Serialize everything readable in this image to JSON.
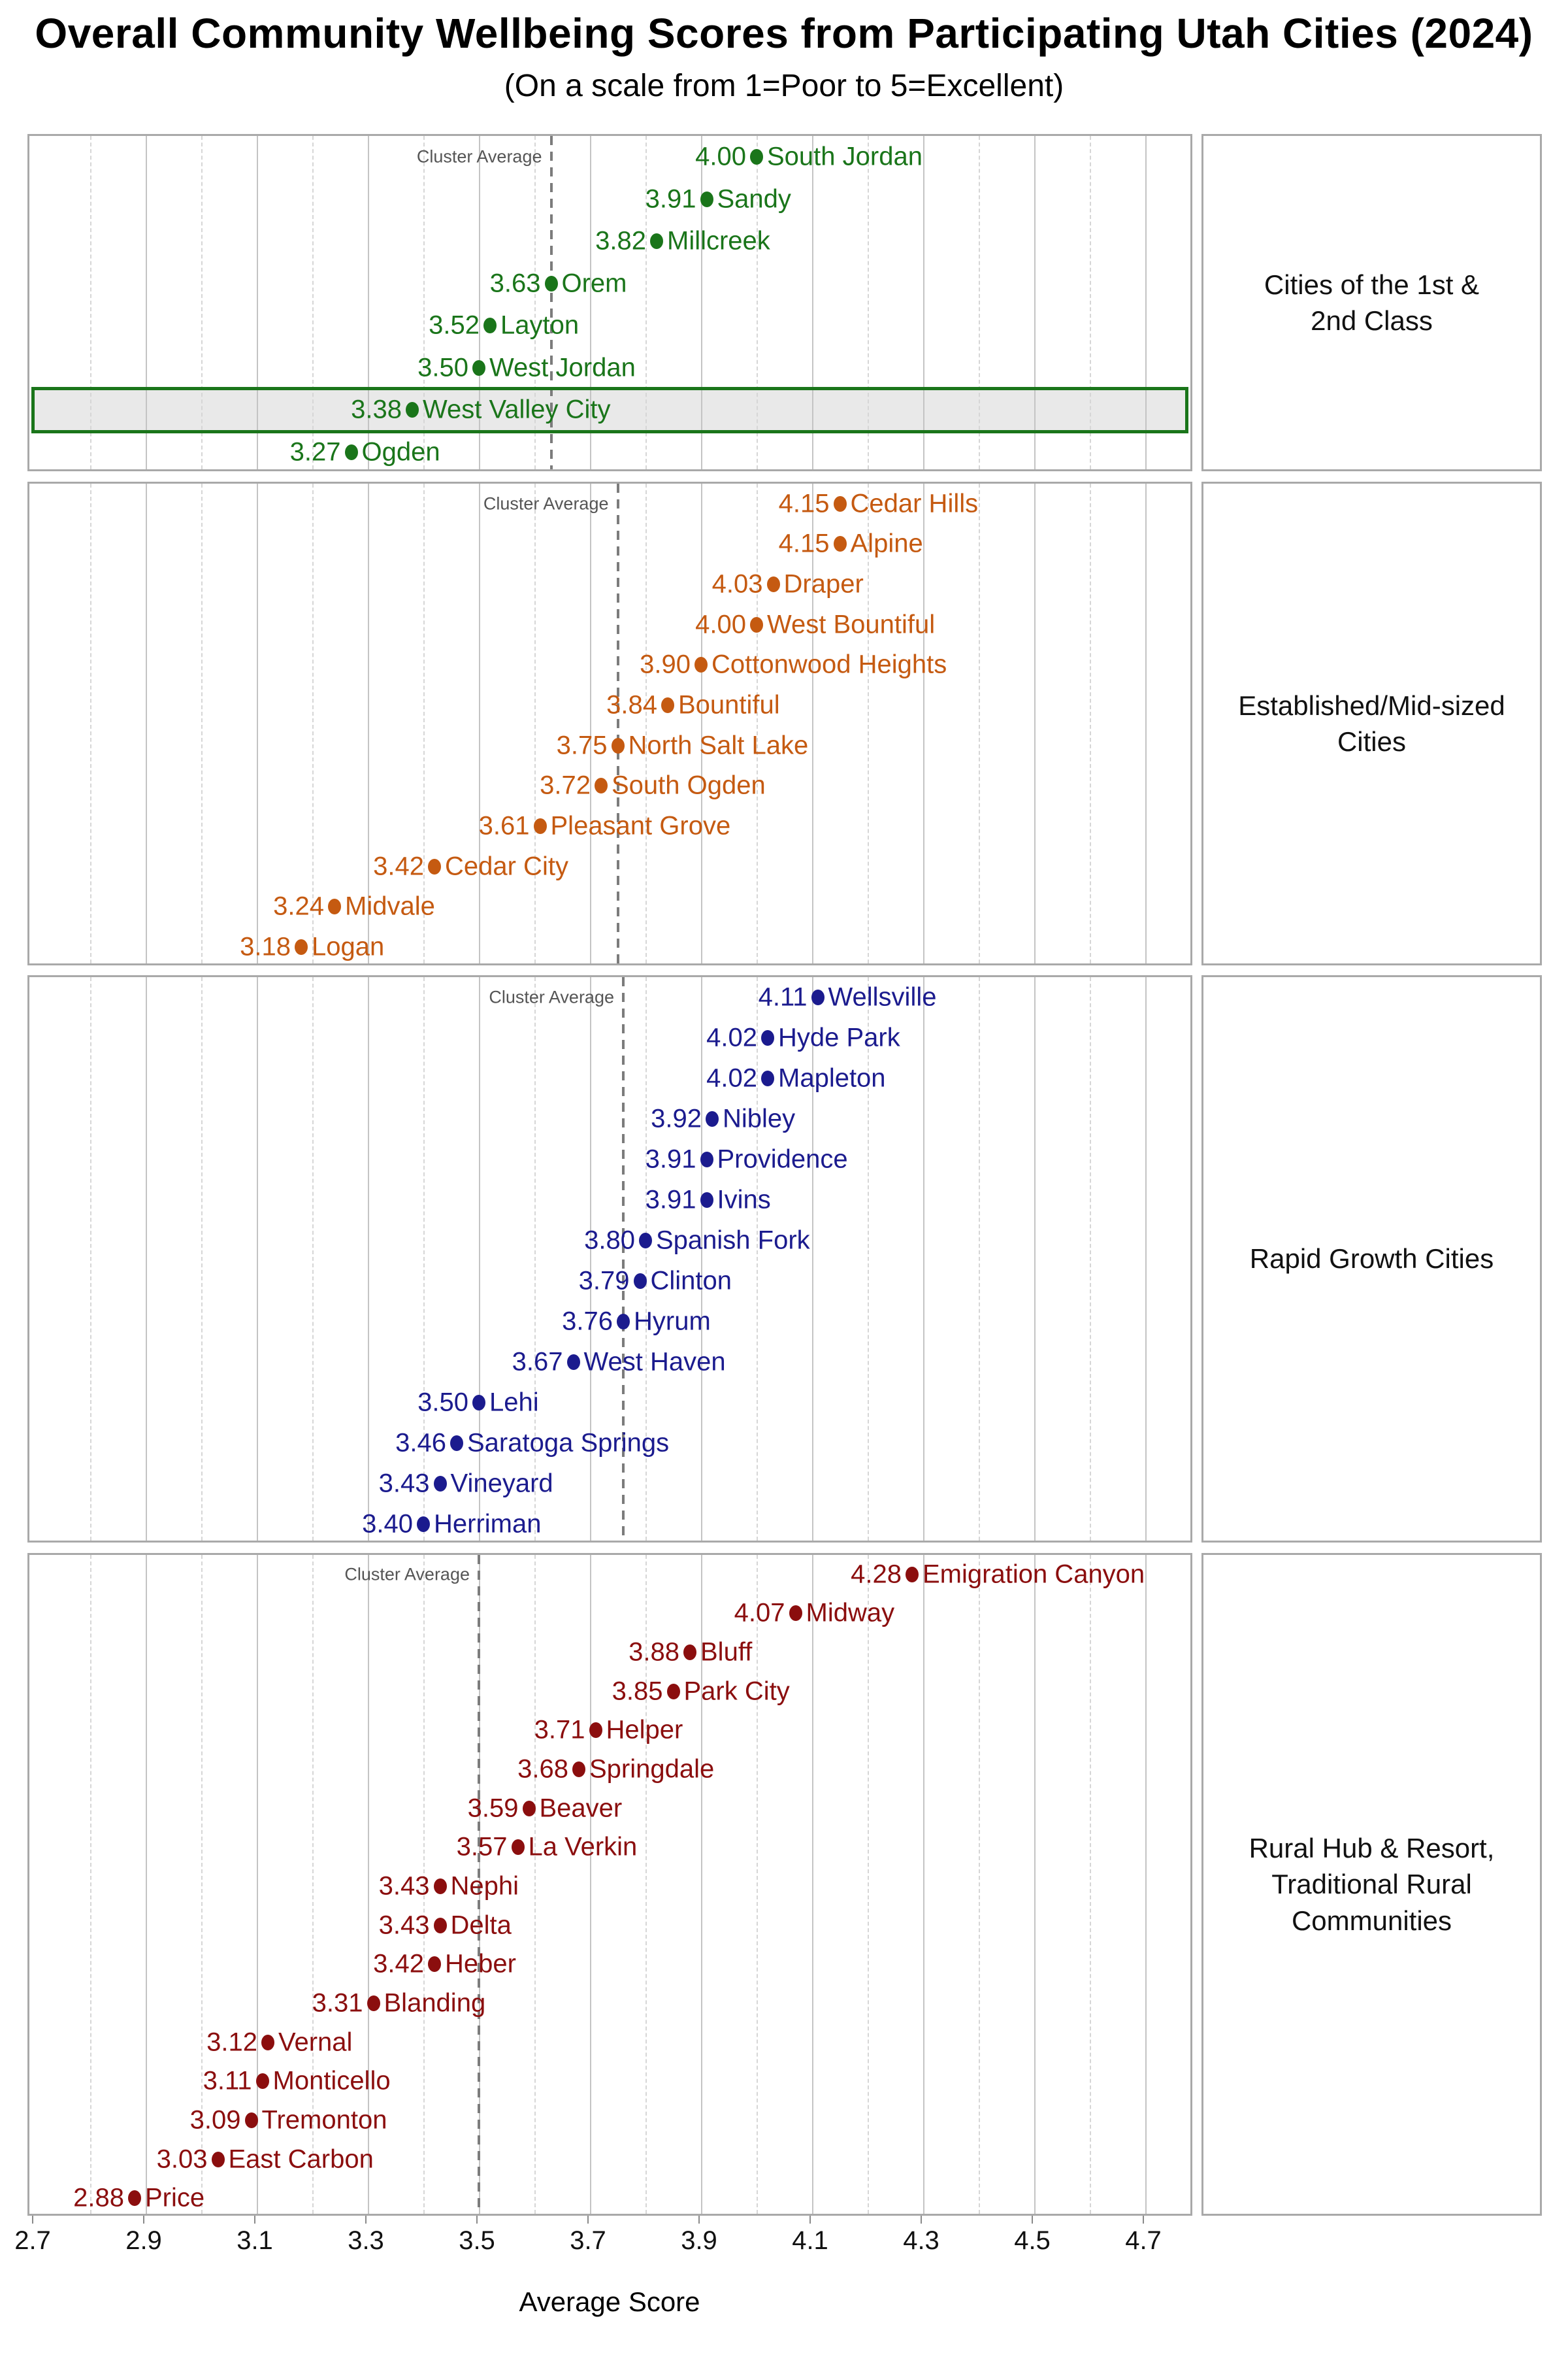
{
  "chart_data": {
    "type": "scatter",
    "title": "Overall Community Wellbeing Scores from Participating Utah Cities (2024)",
    "subtitle": "(On a scale from 1=Poor to 5=Excellent)",
    "cluster_average_label": "Cluster Average",
    "x_axis": {
      "label": "Average Score",
      "min": 2.7,
      "max": 4.78,
      "ticks": [
        "2.7",
        "2.9",
        "3.1",
        "3.3",
        "3.5",
        "3.7",
        "3.9",
        "4.1",
        "4.3",
        "4.5",
        "4.7"
      ],
      "major_gridlines": [
        2.9,
        3.1,
        3.3,
        3.5,
        3.7,
        3.9,
        4.1,
        4.3,
        4.5,
        4.7
      ],
      "minor_gridlines": [
        2.8,
        3.0,
        3.2,
        3.4,
        3.6,
        3.8,
        4.0,
        4.2,
        4.4,
        4.6
      ]
    },
    "grid": true,
    "legend_position": "none",
    "panels": [
      {
        "label": "Cities of the 1st & 2nd Class",
        "label_lines": [
          "Cities of the 1st &",
          "2nd Class"
        ],
        "color": "#1a751a",
        "cluster_average": 3.63,
        "highlight": "West Valley City",
        "cities": [
          {
            "name": "South Jordan",
            "score": 4.0
          },
          {
            "name": "Sandy",
            "score": 3.91
          },
          {
            "name": "Millcreek",
            "score": 3.82
          },
          {
            "name": "Orem",
            "score": 3.63
          },
          {
            "name": "Layton",
            "score": 3.52
          },
          {
            "name": "West Jordan",
            "score": 3.5
          },
          {
            "name": "West Valley City",
            "score": 3.38
          },
          {
            "name": "Ogden",
            "score": 3.27
          }
        ]
      },
      {
        "label": "Established/Mid-sized Cities",
        "label_lines": [
          "Established/Mid-sized",
          "Cities"
        ],
        "color": "#c55a11",
        "cluster_average": 3.75,
        "highlight": null,
        "cities": [
          {
            "name": "Cedar Hills",
            "score": 4.15
          },
          {
            "name": "Alpine",
            "score": 4.15
          },
          {
            "name": "Draper",
            "score": 4.03
          },
          {
            "name": "West Bountiful",
            "score": 4.0
          },
          {
            "name": "Cottonwood Heights",
            "score": 3.9
          },
          {
            "name": "Bountiful",
            "score": 3.84
          },
          {
            "name": "North Salt Lake",
            "score": 3.75
          },
          {
            "name": "South Ogden",
            "score": 3.72
          },
          {
            "name": "Pleasant Grove",
            "score": 3.61
          },
          {
            "name": "Cedar City",
            "score": 3.42
          },
          {
            "name": "Midvale",
            "score": 3.24
          },
          {
            "name": "Logan",
            "score": 3.18
          }
        ]
      },
      {
        "label": "Rapid Growth Cities",
        "label_lines": [
          "Rapid Growth Cities"
        ],
        "color": "#1b1b8e",
        "cluster_average": 3.76,
        "highlight": null,
        "cities": [
          {
            "name": "Wellsville",
            "score": 4.11
          },
          {
            "name": "Hyde Park",
            "score": 4.02
          },
          {
            "name": "Mapleton",
            "score": 4.02
          },
          {
            "name": "Nibley",
            "score": 3.92
          },
          {
            "name": "Providence",
            "score": 3.91
          },
          {
            "name": "Ivins",
            "score": 3.91
          },
          {
            "name": "Spanish Fork",
            "score": 3.8
          },
          {
            "name": "Clinton",
            "score": 3.79
          },
          {
            "name": "Hyrum",
            "score": 3.76
          },
          {
            "name": "West Haven",
            "score": 3.67
          },
          {
            "name": "Lehi",
            "score": 3.5
          },
          {
            "name": "Saratoga Springs",
            "score": 3.46
          },
          {
            "name": "Vineyard",
            "score": 3.43
          },
          {
            "name": "Herriman",
            "score": 3.4
          }
        ]
      },
      {
        "label": "Rural Hub & Resort, Traditional Rural Communities",
        "label_lines": [
          "Rural Hub & Resort,",
          "Traditional Rural",
          "Communities"
        ],
        "color": "#8b0e0e",
        "cluster_average": 3.5,
        "highlight": null,
        "cities": [
          {
            "name": "Emigration Canyon",
            "score": 4.28
          },
          {
            "name": "Midway",
            "score": 4.07
          },
          {
            "name": "Bluff",
            "score": 3.88
          },
          {
            "name": "Park City",
            "score": 3.85
          },
          {
            "name": "Helper",
            "score": 3.71
          },
          {
            "name": "Springdale",
            "score": 3.68
          },
          {
            "name": "Beaver",
            "score": 3.59
          },
          {
            "name": "La Verkin",
            "score": 3.57
          },
          {
            "name": "Nephi",
            "score": 3.43
          },
          {
            "name": "Delta",
            "score": 3.43
          },
          {
            "name": "Heber",
            "score": 3.42
          },
          {
            "name": "Blanding",
            "score": 3.31
          },
          {
            "name": "Vernal",
            "score": 3.12
          },
          {
            "name": "Monticello",
            "score": 3.11
          },
          {
            "name": "Tremonton",
            "score": 3.09
          },
          {
            "name": "East Carbon",
            "score": 3.03
          },
          {
            "name": "Price",
            "score": 2.88
          }
        ]
      }
    ]
  },
  "colors": {
    "panel_border": "#a9a9a9",
    "grid_major": "#c4c4c4",
    "grid_minor": "#d6d6d6",
    "cluster_line": "#7c7c7c",
    "cluster_label_text": "#555555",
    "highlight_fill": "#e9e9e9",
    "tick_mark": "#8a8a8a",
    "tick_text": "#111111",
    "title_text": "#000000"
  }
}
